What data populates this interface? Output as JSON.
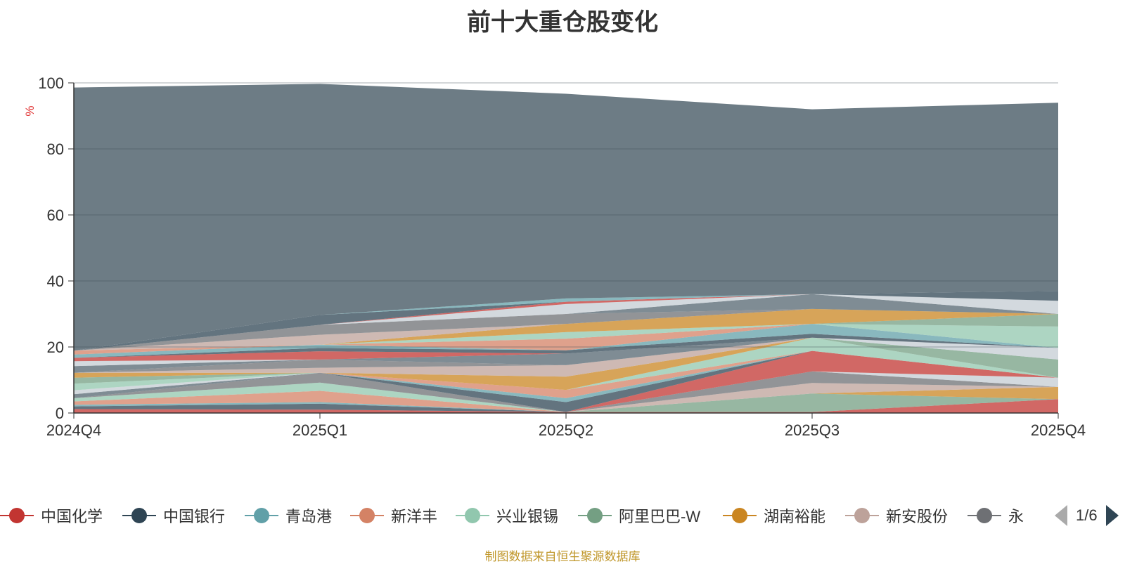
{
  "chart_data": {
    "type": "area",
    "stacked": true,
    "title": "前十大重仓股变化",
    "ylabel": "%",
    "ylim": [
      0,
      100
    ],
    "yticks": [
      0,
      20,
      40,
      60,
      80,
      100
    ],
    "categories": [
      "2024Q4",
      "2025Q1",
      "2025Q2",
      "2025Q3",
      "2025Q4"
    ],
    "palette": [
      "#c23531",
      "#2f4554",
      "#61a0a8",
      "#d48265",
      "#91c7ae",
      "#749f83",
      "#ca8622",
      "#bda29a",
      "#6e7074",
      "#546570",
      "#c4ccd3"
    ],
    "series": [
      {
        "name": "中国化学",
        "values": [
          1.2,
          1.0,
          0.3,
          0.3,
          4.2
        ]
      },
      {
        "name": "中国银行",
        "values": [
          0.8,
          1.8,
          0.0,
          0.0,
          0.0
        ]
      },
      {
        "name": "青岛港",
        "values": [
          0.5,
          0.5,
          0.0,
          0.0,
          0.0
        ]
      },
      {
        "name": "新洋丰",
        "values": [
          1.0,
          3.4,
          0.0,
          0.0,
          0.0
        ]
      },
      {
        "name": "兴业银锡",
        "values": [
          1.0,
          2.5,
          0.0,
          0.0,
          0.0
        ]
      },
      {
        "name": "阿里巴巴-W",
        "values": [
          0.0,
          0.0,
          0.0,
          5.6,
          0.0
        ]
      },
      {
        "name": "湖南裕能",
        "values": [
          0.0,
          0.0,
          0.0,
          0.0,
          3.7
        ]
      },
      {
        "name": "新安股份",
        "values": [
          0.0,
          0.0,
          0.0,
          3.2,
          0.0
        ]
      },
      {
        "name": "永",
        "values": [
          0.0,
          3.0,
          0.0,
          3.5,
          0.0
        ]
      },
      {
        "name": "",
        "values": [
          1.2,
          0.0,
          0.0,
          0.0,
          0.0
        ]
      },
      {
        "name": "",
        "values": [
          1.2,
          0.0,
          0.0,
          0.0,
          2.8
        ]
      },
      {
        "name": "",
        "values": [
          0.0,
          0.0,
          0.0,
          6.2,
          0.0
        ]
      },
      {
        "name": "",
        "values": [
          0.0,
          0.0,
          3.0,
          0.0,
          0.0
        ]
      },
      {
        "name": "",
        "values": [
          0.0,
          0.0,
          1.2,
          0.0,
          0.0
        ]
      },
      {
        "name": "",
        "values": [
          0.0,
          0.0,
          2.5,
          0.0,
          0.0
        ]
      },
      {
        "name": "",
        "values": [
          2.0,
          0.0,
          0.0,
          4.0,
          0.0
        ]
      },
      {
        "name": "",
        "values": [
          1.8,
          0.0,
          0.0,
          0.0,
          5.5
        ]
      },
      {
        "name": "",
        "values": [
          1.5,
          0.0,
          4.0,
          0.0,
          0.0
        ]
      },
      {
        "name": "",
        "values": [
          0.0,
          1.5,
          3.5,
          0.0,
          0.0
        ]
      },
      {
        "name": "",
        "values": [
          0.0,
          2.5,
          0.0,
          0.0,
          0.0
        ]
      },
      {
        "name": "",
        "values": [
          2.0,
          0.0,
          3.5,
          0.0,
          0.0
        ]
      },
      {
        "name": "",
        "values": [
          1.5,
          0.0,
          0.0,
          0.0,
          3.5
        ]
      },
      {
        "name": "",
        "values": [
          1.0,
          2.5,
          0.0,
          0.0,
          0.0
        ]
      },
      {
        "name": "",
        "values": [
          0.0,
          1.0,
          1.0,
          1.2,
          0.0
        ]
      },
      {
        "name": "",
        "values": [
          1.0,
          1.0,
          0.0,
          3.0,
          0.0
        ]
      },
      {
        "name": "",
        "values": [
          1.2,
          0.0,
          3.5,
          0.0,
          0.0
        ]
      },
      {
        "name": "",
        "values": [
          0.0,
          0.0,
          2.0,
          0.0,
          6.5
        ]
      },
      {
        "name": "",
        "values": [
          0.0,
          0.0,
          0.0,
          0.0,
          3.8
        ]
      },
      {
        "name": "",
        "values": [
          0.0,
          0.0,
          2.5,
          4.5,
          0.0
        ]
      },
      {
        "name": "",
        "values": [
          0.0,
          3.0,
          0.0,
          0.0,
          0.0
        ]
      },
      {
        "name": "",
        "values": [
          0.0,
          3.0,
          3.0,
          0.0,
          0.0
        ]
      },
      {
        "name": "",
        "values": [
          0.0,
          0.0,
          0.0,
          4.5,
          0.0
        ]
      },
      {
        "name": "",
        "values": [
          0.0,
          0.0,
          3.0,
          0.0,
          4.0
        ]
      },
      {
        "name": "",
        "values": [
          0.0,
          0.0,
          0.7,
          0.0,
          0.0
        ]
      },
      {
        "name": "",
        "values": [
          0.0,
          3.0,
          0.0,
          0.0,
          3.0
        ]
      },
      {
        "name": "",
        "values": [
          0.0,
          0.0,
          1.0,
          0.0,
          0.0
        ]
      },
      {
        "name": "",
        "values": [
          79.7,
          70.0,
          62.0,
          56.0,
          57.0
        ]
      }
    ]
  },
  "legend": {
    "items": [
      "中国化学",
      "中国银行",
      "青岛港",
      "新洋丰",
      "兴业银锡",
      "阿里巴巴-W",
      "湖南裕能",
      "新安股份",
      "永"
    ],
    "page": "1/6"
  },
  "source": "制图数据来自恒生聚源数据库"
}
